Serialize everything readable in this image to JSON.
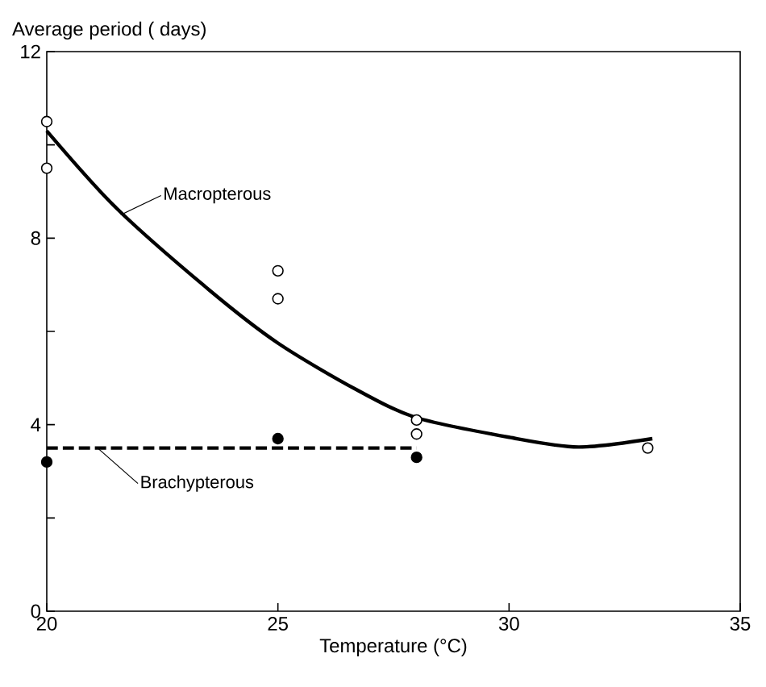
{
  "chart_data": {
    "type": "scatter",
    "xlabel": "Temperature (°C)",
    "ylabel": "Average period ( days)",
    "xlim": [
      20,
      35
    ],
    "ylim": [
      0,
      12
    ],
    "xticks": [
      20,
      25,
      30,
      35
    ],
    "yticks": [
      0,
      {
        "value": 2,
        "label": null
      },
      4,
      {
        "value": 6,
        "label": null
      },
      8,
      {
        "value": 10,
        "label": null
      },
      12
    ],
    "series": [
      {
        "marker": "circle",
        "color": "#ffffff",
        "x": [
          20,
          20,
          25,
          25,
          28,
          28,
          33
        ],
        "values": [
          10.5,
          9.5,
          7.3,
          6.7,
          4.1,
          3.8,
          3.5
        ]
      },
      {
        "marker": "circle",
        "color": "#000000",
        "x": [
          20,
          25,
          28
        ],
        "values": [
          3.2,
          3.7,
          3.3
        ]
      },
      {
        "type": "line",
        "marker": "none",
        "line_style": "solid",
        "color": "#000000",
        "x": [
          20,
          21.5,
          23.5,
          25,
          26.7,
          28,
          30,
          31.5,
          33.1
        ],
        "values": [
          10.3,
          8.65,
          6.9,
          5.75,
          4.75,
          4.15,
          3.73,
          3.52,
          3.7
        ]
      },
      {
        "type": "line",
        "marker": "none",
        "line_style": "dashed",
        "color": "#000000",
        "x": [
          20,
          28
        ],
        "values": [
          3.5,
          3.5
        ]
      }
    ],
    "annotations": [
      {
        "text": "Macropterous",
        "x": 21.6,
        "y": 8.5
      },
      {
        "text": "Brachypterous",
        "x": 21.1,
        "y": 3.5
      }
    ]
  }
}
